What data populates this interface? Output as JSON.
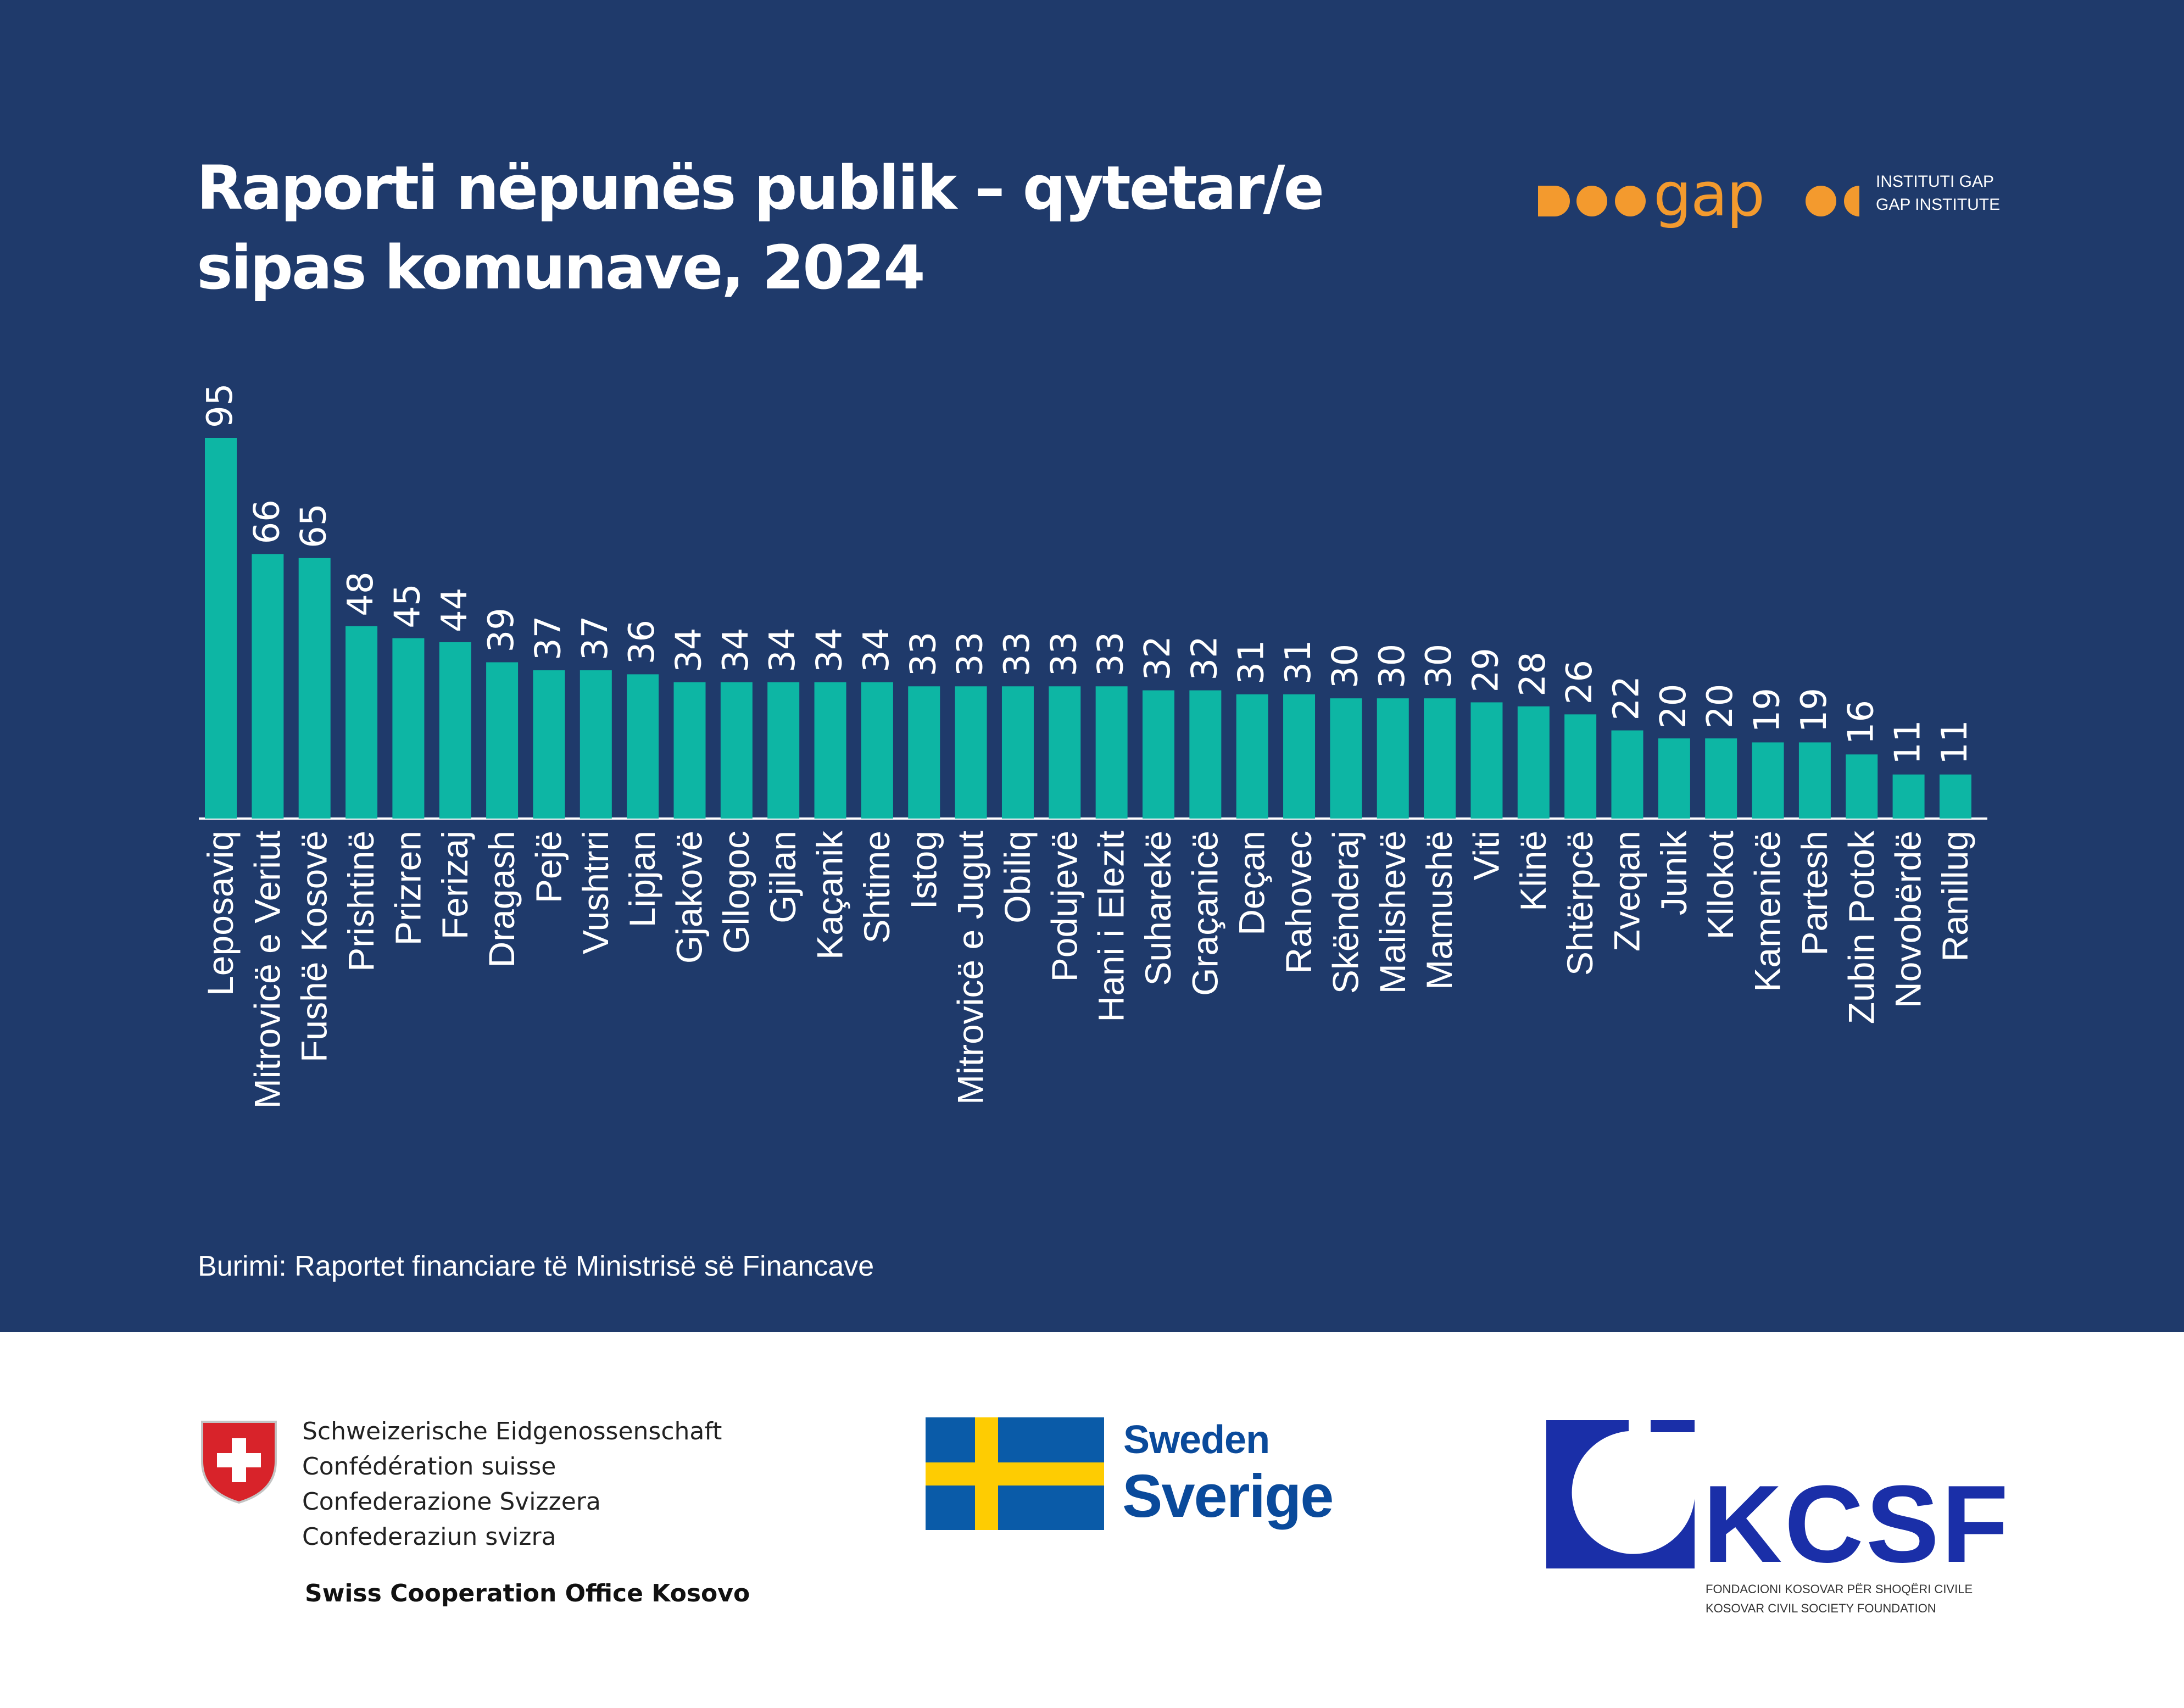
{
  "header": {
    "title_line1": "Raporti nëpunës publik – qytetar/e",
    "title_line2": "sipas komunave, 2024"
  },
  "logo_gap": {
    "wordmark": "gap",
    "line1": "INSTITUTI GAP",
    "line2": "GAP INSTITUTE",
    "color": "#f39a2e"
  },
  "chart_data": {
    "type": "bar",
    "title": "Raporti nëpunës publik – qytetar/e sipas komunave, 2024",
    "xlabel": "",
    "ylabel": "",
    "ylim": [
      0,
      95
    ],
    "grid": false,
    "bar_color": "#0db6a4",
    "categories": [
      "Leposaviq",
      "Mitrovicë e Veriut",
      "Fushë Kosovë",
      "Prishtinë",
      "Prizren",
      "Ferizaj",
      "Dragash",
      "Pejë",
      "Vushtrri",
      "Lipjan",
      "Gjakovë",
      "Gllogoc",
      "Gjilan",
      "Kaçanik",
      "Shtime",
      "Istog",
      "Mitrovicë e Jugut",
      "Obiliq",
      "Podujevë",
      "Hani i Elezit",
      "Suharekë",
      "Graçanicë",
      "Deçan",
      "Rahovec",
      "Skënderaj",
      "Malishevë",
      "Mamushë",
      "Viti",
      "Klinë",
      "Shtërpcë",
      "Zveqan",
      "Junik",
      "Kllokot",
      "Kamenicë",
      "Partesh",
      "Zubin Potok",
      "Novobërdë",
      "Ranillug"
    ],
    "values": [
      95,
      66,
      65,
      48,
      45,
      44,
      39,
      37,
      37,
      36,
      34,
      34,
      34,
      34,
      34,
      33,
      33,
      33,
      33,
      33,
      32,
      32,
      31,
      31,
      30,
      30,
      30,
      29,
      28,
      26,
      22,
      20,
      20,
      19,
      19,
      16,
      11,
      11
    ]
  },
  "source": "Burimi: Raportet financiare të Ministrisë së Financave",
  "footer": {
    "swiss": {
      "lines": [
        "Schweizerische Eidgenossenschaft",
        "Confédération suisse",
        "Confederazione Svizzera",
        "Confederaziun svizra"
      ],
      "office": "Swiss Cooperation Office Kosovo"
    },
    "sweden": {
      "en": "Sweden",
      "sv": "Sverige"
    },
    "kcsf": {
      "letters": "KCSF",
      "line1": "FONDACIONI KOSOVAR PËR SHOQËRI CIVILE",
      "line2": "KOSOVAR CIVIL SOCIETY FOUNDATION"
    }
  },
  "colors": {
    "panel_bg": "#1f3a6b",
    "bar": "#0db6a4",
    "text_on_panel": "#ffffff",
    "gap_orange": "#f39a2e",
    "swiss_red": "#d8232a",
    "sweden_blue": "#0a5ba8",
    "sweden_yellow": "#fecc02",
    "kcsf_blue": "#1a2fa8"
  }
}
